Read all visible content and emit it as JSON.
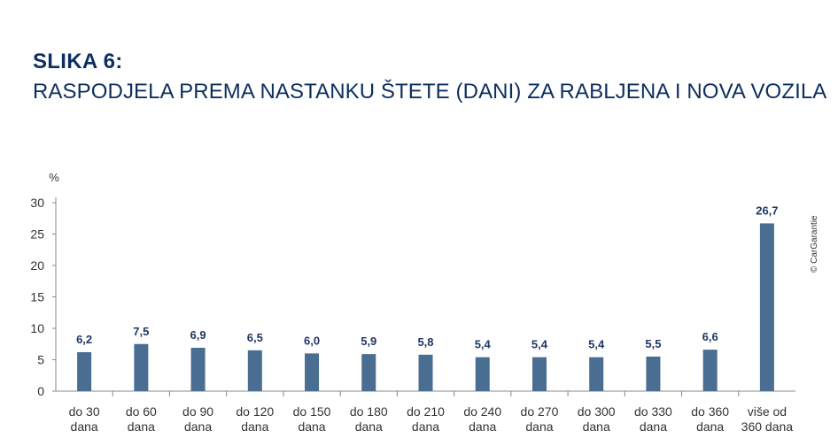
{
  "figure": {
    "label": "SLIKA 6:",
    "title": "RASPODJELA PREMA NASTANKU ŠTETE (DANI) ZA RABLJENA I NOVA VOZILA",
    "credit": "© CarGarantie"
  },
  "colors": {
    "bar": "#4a6d92",
    "title": "#0d2f5e",
    "value_label": "#1f3864",
    "axis": "#888888",
    "text": "#333333"
  },
  "chart_data": {
    "type": "bar",
    "ylabel": "%",
    "ylim": [
      0,
      30
    ],
    "yticks": [
      "0",
      "5",
      "10",
      "15",
      "20",
      "25",
      "30"
    ],
    "grid": false,
    "categories": [
      [
        "do 30",
        "dana"
      ],
      [
        "do 60",
        "dana"
      ],
      [
        "do 90",
        "dana"
      ],
      [
        "do 120",
        "dana"
      ],
      [
        "do 150",
        "dana"
      ],
      [
        "do 180",
        "dana"
      ],
      [
        "do 210",
        "dana"
      ],
      [
        "do 240",
        "dana"
      ],
      [
        "do 270",
        "dana"
      ],
      [
        "do 300",
        "dana"
      ],
      [
        "do 330",
        "dana"
      ],
      [
        "do 360",
        "dana"
      ],
      [
        "više od",
        "360 dana"
      ]
    ],
    "values": [
      6.2,
      7.5,
      6.9,
      6.5,
      6.0,
      5.9,
      5.8,
      5.4,
      5.4,
      5.4,
      5.5,
      6.6,
      26.7
    ],
    "data_labels": [
      "6,2",
      "7,5",
      "6,9",
      "6,5",
      "6,0",
      "5,9",
      "5,8",
      "5,4",
      "5,4",
      "5,4",
      "5,5",
      "6,6",
      "26,7"
    ]
  }
}
